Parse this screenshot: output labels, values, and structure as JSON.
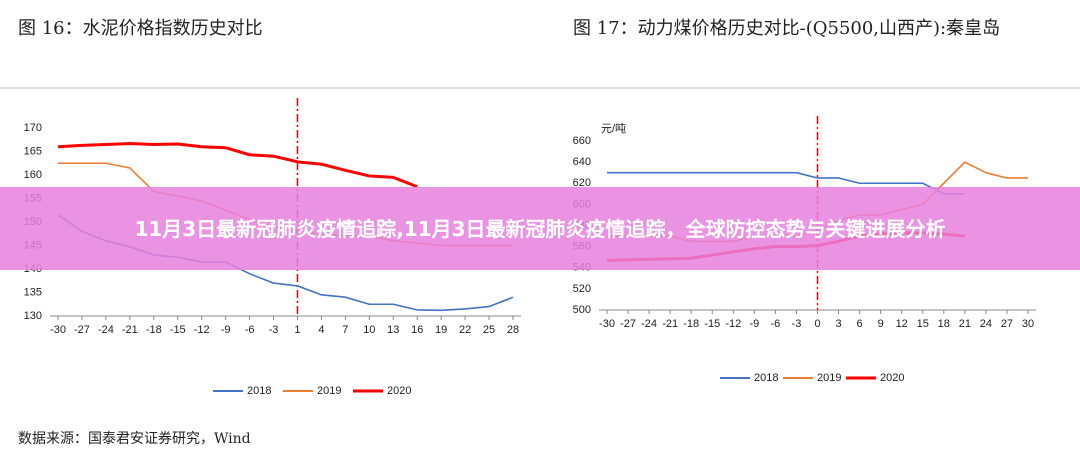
{
  "chart_data": [
    {
      "type": "line",
      "title": "图 16：水泥价格指数历史对比",
      "categories": [
        "-30",
        "-27",
        "-24",
        "-21",
        "-18",
        "-15",
        "-12",
        "-9",
        "-6",
        "-3",
        "1",
        "4",
        "7",
        "10",
        "13",
        "16",
        "19",
        "22",
        "25",
        "28"
      ],
      "vline": "1",
      "ylim": [
        130,
        170
      ],
      "yticks": [
        130,
        135,
        140,
        145,
        150,
        155,
        160,
        165,
        170
      ],
      "series": [
        {
          "name": "2018",
          "color": "#4472c4",
          "values": [
            151.5,
            148,
            146,
            144.7,
            143,
            142.5,
            141.5,
            141.5,
            139,
            137,
            136.4,
            134.5,
            134,
            132.5,
            132.5,
            131.3,
            131.2,
            131.5,
            132,
            134
          ]
        },
        {
          "name": "2019",
          "color": "#ed7d31",
          "values": [
            162.5,
            162.5,
            162.5,
            161.5,
            156.5,
            155.5,
            154.5,
            152.5,
            150.5,
            149,
            148,
            147.5,
            147,
            147,
            146,
            145.5,
            145,
            145,
            145,
            145
          ]
        },
        {
          "name": "2020",
          "color": "#ff0000",
          "values": [
            166,
            166.3,
            166.5,
            166.7,
            166.5,
            166.6,
            166,
            165.8,
            164.3,
            164,
            162.8,
            162.3,
            161,
            159.8,
            159.5,
            157.5,
            null,
            null,
            null,
            null
          ]
        }
      ]
    },
    {
      "type": "line",
      "title": "图 17：动力煤价格历史对比-(Q5500,山西产):秦皇岛",
      "y_label": "元/吨",
      "x": [
        -30,
        -27,
        -24,
        -21,
        -18,
        -15,
        -12,
        -9,
        -6,
        -3,
        0,
        3,
        6,
        9,
        12,
        15,
        18,
        21,
        24,
        27,
        30
      ],
      "vline": 0,
      "xlim": [
        -30,
        30
      ],
      "xticks": [
        -30,
        -27,
        -24,
        -21,
        -18,
        -15,
        -12,
        -9,
        -6,
        -3,
        0,
        3,
        6,
        9,
        12,
        15,
        18,
        21,
        24,
        27,
        30
      ],
      "ylim": [
        500,
        660
      ],
      "yticks": [
        500,
        520,
        540,
        560,
        580,
        600,
        620,
        640,
        660
      ],
      "series": [
        {
          "name": "2018",
          "color": "#4472c4",
          "values": [
            630,
            630,
            630,
            630,
            630,
            630,
            630,
            630,
            630,
            630,
            625,
            625,
            620,
            620,
            620,
            620,
            610,
            610,
            null,
            null,
            null
          ]
        },
        {
          "name": "2019",
          "color": "#ed7d31",
          "values": [
            570,
            570,
            570,
            570,
            565,
            565,
            565,
            570,
            570,
            570,
            575,
            585,
            590,
            590,
            595,
            600,
            620,
            640,
            630,
            625,
            625
          ]
        },
        {
          "name": "2020",
          "color": "#ff0000",
          "values": [
            547,
            547.5,
            548,
            548.5,
            549,
            552,
            555,
            558,
            560,
            560,
            561,
            565,
            570,
            572,
            573,
            573,
            572,
            570,
            null,
            null,
            null
          ]
        }
      ]
    }
  ],
  "source": "数据来源：国泰君安证券研究，Wind",
  "banner": "11月3日最新冠肺炎疫情追踪,11月3日最新冠肺炎疫情追踪，全球防控态势与关键进展分析"
}
